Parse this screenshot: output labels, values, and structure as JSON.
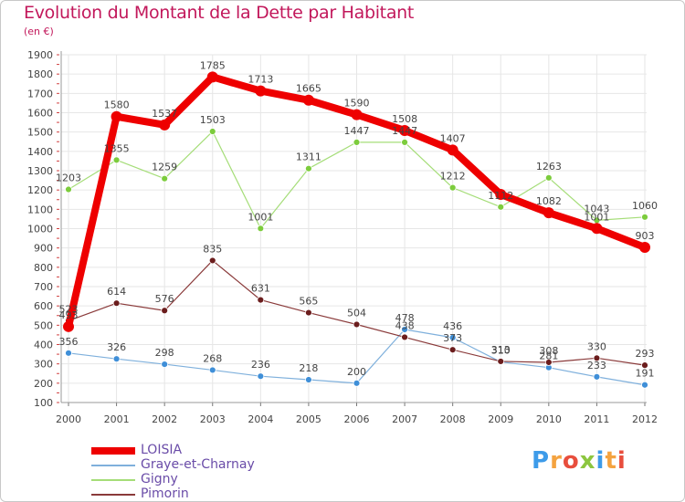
{
  "title": "Evolution du Montant de la Dette par Habitant",
  "subtitle": "(en €)",
  "logo": {
    "text": "Proxiti",
    "letter_colors": [
      "#3d9be9",
      "#f4a340",
      "#e84e3d",
      "#8cc63f",
      "#3d9be9",
      "#f4a340",
      "#e84e3d"
    ]
  },
  "chart_data": {
    "type": "line",
    "x": [
      "2000",
      "2001",
      "2002",
      "2003",
      "2004",
      "2005",
      "2006",
      "2007",
      "2008",
      "2009",
      "2010",
      "2011",
      "2012"
    ],
    "ylim": [
      100,
      1900
    ],
    "yticks": [
      100,
      200,
      300,
      400,
      500,
      600,
      700,
      800,
      900,
      1000,
      1100,
      1200,
      1300,
      1400,
      1500,
      1600,
      1700,
      1800,
      1900
    ],
    "grid": true,
    "series": [
      {
        "name": "LOISIA",
        "color": "#ee0000",
        "values": [
          493,
          1580,
          1537,
          1785,
          1713,
          1665,
          1590,
          1508,
          1407,
          1177,
          1082,
          1001,
          903
        ],
        "labels": [
          "493",
          "1580",
          "1537",
          "1785",
          "1713",
          "1665",
          "1590",
          "1508",
          "1407",
          "",
          "1082",
          "1001",
          "903"
        ]
      },
      {
        "name": "Graye-et-Charnay",
        "color": "#5b9bd5",
        "values": [
          356,
          326,
          298,
          268,
          236,
          218,
          200,
          478,
          436,
          310,
          281,
          233,
          191
        ],
        "labels": [
          "356",
          "326",
          "298",
          "268",
          "236",
          "218",
          "200",
          "478",
          "436",
          "310",
          "281",
          "233",
          "191"
        ]
      },
      {
        "name": "Gigny",
        "color": "#8fd14f",
        "values": [
          1203,
          1355,
          1259,
          1503,
          1001,
          1311,
          1447,
          1447,
          1212,
          1112,
          1263,
          1043,
          1060
        ],
        "labels": [
          "1203",
          "1355",
          "1259",
          "1503",
          "1001",
          "1311",
          "1447",
          "1447",
          "1212",
          "1112",
          "1263",
          "1043",
          "1060"
        ]
      },
      {
        "name": "Pimorin",
        "color": "#6b1d1d",
        "values": [
          523,
          614,
          576,
          835,
          631,
          565,
          504,
          438,
          373,
          313,
          308,
          330,
          293
        ],
        "labels": [
          "523",
          "614",
          "576",
          "835",
          "631",
          "565",
          "504",
          "438",
          "373",
          "313",
          "308",
          "330",
          "293"
        ]
      }
    ]
  }
}
